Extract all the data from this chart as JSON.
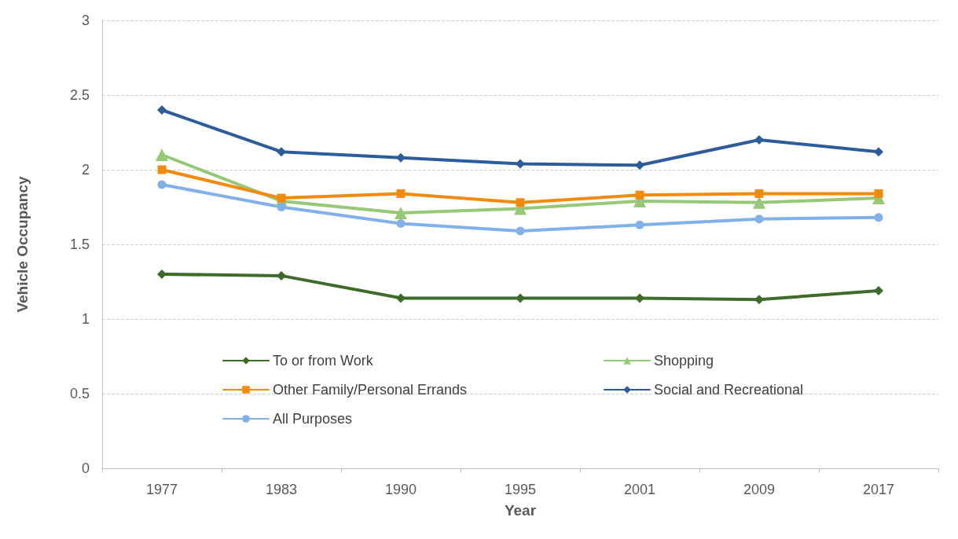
{
  "chart_data": {
    "type": "line",
    "xlabel": "Year",
    "ylabel": "Vehicle Occupancy",
    "categories": [
      "1977",
      "1983",
      "1990",
      "1995",
      "2001",
      "2009",
      "2017"
    ],
    "series": [
      {
        "name": "To or from Work",
        "color": "#3f6b2a",
        "marker": "diamond",
        "values": [
          1.3,
          1.29,
          1.14,
          1.14,
          1.14,
          1.13,
          1.19
        ]
      },
      {
        "name": "Shopping",
        "color": "#96c878",
        "marker": "triangle",
        "values": [
          2.1,
          1.79,
          1.71,
          1.74,
          1.79,
          1.78,
          1.81
        ]
      },
      {
        "name": "Other Family/Personal Errands",
        "color": "#f28a0c",
        "marker": "square",
        "values": [
          2.0,
          1.81,
          1.84,
          1.78,
          1.83,
          1.84,
          1.84
        ]
      },
      {
        "name": "Social and Recreational",
        "color": "#2c5c9a",
        "marker": "diamond",
        "values": [
          2.4,
          2.12,
          2.08,
          2.04,
          2.03,
          2.2,
          2.12
        ]
      },
      {
        "name": "All Purposes",
        "color": "#82b0e8",
        "marker": "circle",
        "values": [
          1.9,
          1.75,
          1.64,
          1.59,
          1.63,
          1.67,
          1.68
        ]
      }
    ],
    "ylim": [
      0,
      3
    ],
    "yticks": [
      0,
      0.5,
      1,
      1.5,
      2,
      2.5,
      3
    ],
    "grid": "y",
    "legend": "bottom",
    "line_style": "solid"
  }
}
